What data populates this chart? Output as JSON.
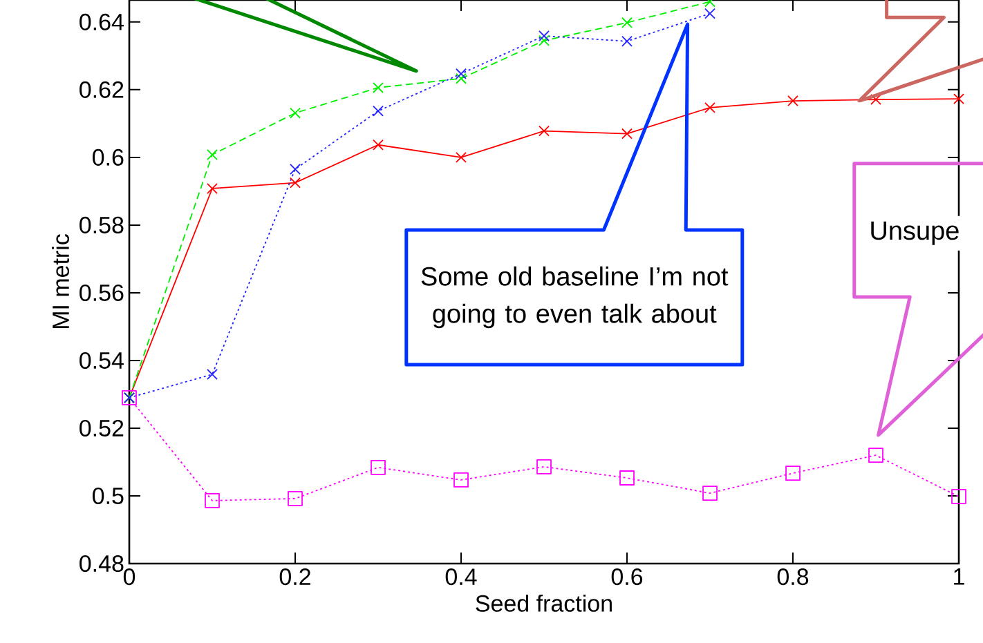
{
  "chart_data": {
    "type": "line",
    "xlabel": "Seed fraction",
    "ylabel": "MI metric",
    "x": [
      0,
      0.1,
      0.2,
      0.3,
      0.4,
      0.5,
      0.6,
      0.7,
      0.8,
      0.9,
      1.0
    ],
    "series": [
      {
        "color": "#ff0000",
        "marker": "cross",
        "line_style": "solid",
        "values": [
          0.529,
          0.5908,
          0.5925,
          0.6037,
          0.6,
          0.6078,
          0.607,
          0.6147,
          0.6167,
          0.6171,
          0.6173
        ]
      },
      {
        "color": "#00ee00",
        "marker": "cross",
        "line_style": "dashed",
        "values": [
          0.529,
          0.6008,
          0.6131,
          0.6206,
          0.6233,
          0.6345,
          0.6398,
          0.646,
          null,
          null,
          null
        ]
      },
      {
        "color": "#2222ff",
        "marker": "cross",
        "line_style": "dotted",
        "values": [
          0.529,
          0.5359,
          0.5965,
          0.6137,
          0.6247,
          0.6359,
          0.6343,
          0.6425,
          null,
          null,
          null
        ]
      },
      {
        "color": "#ff00ff",
        "marker": "square",
        "line_style": "dotted",
        "values": [
          0.529,
          0.4986,
          0.4992,
          0.5084,
          0.5047,
          0.5086,
          0.5053,
          0.5008,
          0.5067,
          0.512,
          0.4998
        ]
      }
    ],
    "xlim": [
      0,
      1
    ],
    "ylim": [
      0.48,
      0.6465
    ],
    "xticks": [
      0,
      0.2,
      0.4,
      0.6,
      0.8,
      1
    ],
    "yticks": [
      0.48,
      0.5,
      0.52,
      0.54,
      0.56,
      0.58,
      0.6,
      0.62,
      0.64
    ],
    "grid": false,
    "annotations": [
      "Some old baseline I’m not going to even talk about",
      "Unsupe"
    ]
  }
}
